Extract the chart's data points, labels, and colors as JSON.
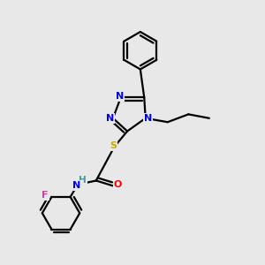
{
  "bg_color": "#e8e8e8",
  "atom_colors": {
    "N": "#0000ee",
    "S": "#ccaa00",
    "O": "#ff0000",
    "F": "#cc44aa",
    "H": "#449999",
    "C": "#000000"
  },
  "bond_color": "#000000",
  "bond_width": 1.6
}
